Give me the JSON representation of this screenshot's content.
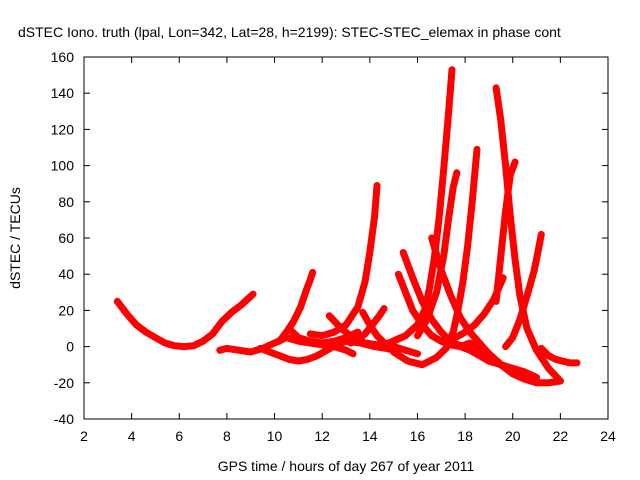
{
  "chart_data": {
    "type": "scatter",
    "title": "dSTEC Iono. truth (lpal, Lon=342, Lat=28, h=2199): STEC-STEC_elemax in phase cont",
    "xlabel": "GPS time / hours of day 267 of year 2011",
    "ylabel": "dSTEC  / TECUs",
    "xlim": [
      2,
      24
    ],
    "ylim": [
      -40,
      160
    ],
    "xticks": [
      2,
      4,
      6,
      8,
      10,
      12,
      14,
      16,
      18,
      20,
      22,
      24
    ],
    "yticks": [
      -40,
      -20,
      0,
      20,
      40,
      60,
      80,
      100,
      120,
      140,
      160
    ],
    "grid": false,
    "legend": "none",
    "marker": "plus",
    "series_color": "#ff0000",
    "series": [
      {
        "x": [
          3.4,
          3.8,
          4.2,
          4.6,
          5.0,
          5.4,
          5.8,
          6.2,
          6.6,
          7.0,
          7.4,
          7.8,
          8.2,
          8.6,
          9.1
        ],
        "y": [
          25,
          18,
          12,
          8,
          5,
          2,
          0.5,
          0,
          0.5,
          3,
          7,
          14,
          19,
          23,
          29
        ]
      },
      {
        "x": [
          7.7,
          8.0,
          8.5,
          9.0,
          9.5,
          10.0,
          10.5,
          11.0,
          11.5,
          12.0,
          12.5,
          13.0,
          13.3
        ],
        "y": [
          -2,
          -1,
          -2,
          -3,
          -1,
          2,
          5,
          3,
          2,
          1,
          0,
          -2,
          -4
        ]
      },
      {
        "x": [
          9.4,
          9.8,
          10.2,
          10.6,
          11.0,
          11.4,
          11.8,
          12.2,
          12.6,
          13.0,
          13.6,
          14.2,
          14.7,
          15.0
        ],
        "y": [
          -1,
          -3,
          -5,
          -7,
          -8,
          -7,
          -5,
          -2,
          1,
          3,
          2,
          0,
          -1,
          -2
        ]
      },
      {
        "x": [
          10.2,
          10.5,
          10.8,
          11.1,
          11.3,
          11.5,
          11.6
        ],
        "y": [
          3,
          8,
          14,
          22,
          30,
          37,
          41
        ]
      },
      {
        "x": [
          10.6,
          11.0,
          11.5,
          12.0,
          12.5,
          13.0,
          13.5
        ],
        "y": [
          10,
          5,
          3,
          2,
          3,
          5,
          8
        ]
      },
      {
        "x": [
          11.5,
          12.0,
          12.5,
          13.0,
          13.5,
          13.8,
          14.0,
          14.2,
          14.3
        ],
        "y": [
          7,
          6,
          8,
          12,
          22,
          36,
          52,
          72,
          89
        ]
      },
      {
        "x": [
          12.3,
          12.8,
          13.3,
          13.8,
          14.3,
          14.8,
          15.3
        ],
        "y": [
          17,
          10,
          5,
          2,
          1,
          2,
          5
        ]
      },
      {
        "x": [
          13.7,
          14.0,
          14.3,
          14.6,
          15.0,
          15.5,
          16.0
        ],
        "y": [
          19,
          12,
          6,
          2,
          0,
          -2,
          -4
        ]
      },
      {
        "x": [
          13.2,
          13.5,
          13.8,
          14.1,
          14.4,
          14.6
        ],
        "y": [
          2,
          4,
          7,
          12,
          17,
          21
        ]
      },
      {
        "x": [
          15.2,
          15.5,
          15.8,
          16.2,
          16.6,
          17.0,
          17.4,
          17.8,
          18.2,
          18.6,
          19.0,
          19.5
        ],
        "y": [
          40,
          30,
          20,
          12,
          6,
          3,
          1,
          0,
          2,
          0,
          -4,
          -10
        ]
      },
      {
        "x": [
          14.5,
          15.0,
          15.5,
          16.0,
          16.3,
          16.5,
          16.7,
          16.9,
          17.1,
          17.3,
          17.45
        ],
        "y": [
          0,
          3,
          6,
          12,
          20,
          32,
          48,
          70,
          98,
          128,
          153
        ]
      },
      {
        "x": [
          15.4,
          15.8,
          16.2,
          16.6,
          17.0,
          17.3,
          17.5,
          17.7,
          18.0
        ],
        "y": [
          52,
          38,
          25,
          15,
          8,
          4,
          2,
          1,
          0
        ]
      },
      {
        "x": [
          15.0,
          15.6,
          16.2,
          16.8,
          17.2,
          17.5,
          17.7,
          17.9,
          18.1,
          18.3,
          18.5
        ],
        "y": [
          -3,
          -8,
          -10,
          -6,
          -1,
          8,
          20,
          35,
          55,
          80,
          109
        ]
      },
      {
        "x": [
          16.0,
          16.4,
          16.8,
          17.1,
          17.3,
          17.5,
          17.65
        ],
        "y": [
          6,
          15,
          30,
          50,
          70,
          88,
          96
        ]
      },
      {
        "x": [
          17.2,
          17.6,
          18.0,
          18.4,
          18.8,
          19.2,
          19.6
        ],
        "y": [
          3,
          5,
          8,
          12,
          18,
          26,
          38
        ]
      },
      {
        "x": [
          16.6,
          17.0,
          17.4,
          17.8,
          18.2,
          18.6,
          19.0,
          19.6
        ],
        "y": [
          60,
          42,
          28,
          16,
          8,
          2,
          -4,
          -11
        ]
      },
      {
        "x": [
          17.0,
          17.4,
          17.8,
          18.2,
          18.6,
          19.0,
          19.5,
          20.0,
          20.5,
          21.0
        ],
        "y": [
          3,
          1,
          0,
          -2,
          -5,
          -8,
          -10,
          -12,
          -14,
          -17
        ]
      },
      {
        "x": [
          19.3,
          19.5,
          19.7,
          19.9,
          20.1,
          20.3,
          20.6,
          21.0,
          21.5,
          22.0
        ],
        "y": [
          143,
          125,
          100,
          72,
          48,
          28,
          10,
          -2,
          -12,
          -19
        ]
      },
      {
        "x": [
          19.7,
          20.0,
          20.3,
          20.6,
          20.9,
          21.1,
          21.2
        ],
        "y": [
          0,
          5,
          15,
          28,
          42,
          55,
          62
        ]
      },
      {
        "x": [
          19.3,
          19.5,
          19.7,
          19.9,
          20.1
        ],
        "y": [
          25,
          50,
          75,
          95,
          102
        ]
      },
      {
        "x": [
          18.5,
          19.0,
          19.5,
          20.0,
          20.5,
          21.0,
          21.5,
          22.0
        ],
        "y": [
          -2,
          -6,
          -10,
          -15,
          -18,
          -20,
          -20,
          -19
        ]
      },
      {
        "x": [
          21.2,
          21.5,
          21.8,
          22.1,
          22.4,
          22.7
        ],
        "y": [
          -1,
          -5,
          -7,
          -8,
          -9,
          -9
        ]
      }
    ]
  }
}
